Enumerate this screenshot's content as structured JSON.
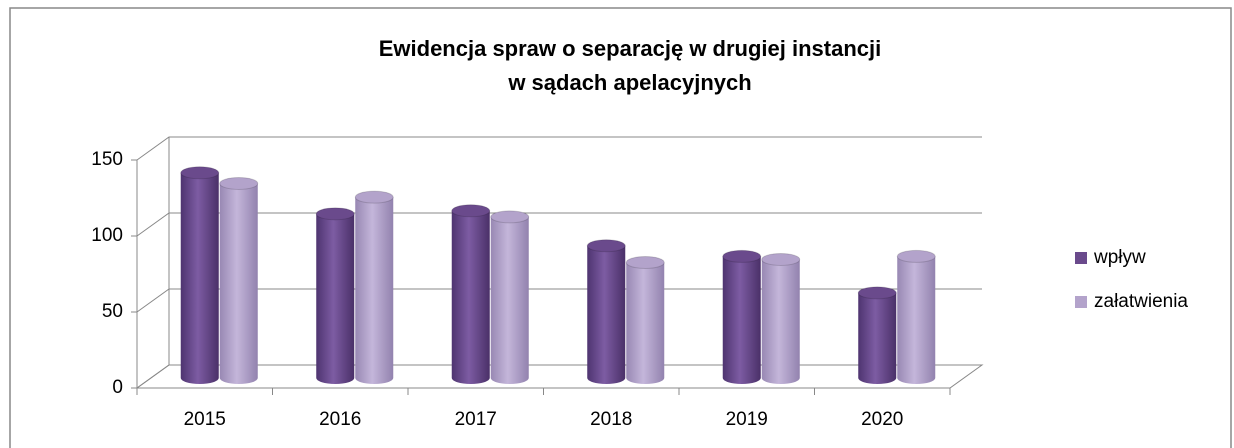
{
  "chart_data": {
    "type": "bar3d",
    "title": [
      "Ewidencja spraw o separację w drugiej instancji",
      "w sądach apelacyjnych"
    ],
    "categories": [
      "2015",
      "2016",
      "2017",
      "2018",
      "2019",
      "2020"
    ],
    "series": [
      {
        "name": "wpływ",
        "color": "#6a4a8c",
        "values": [
          135,
          108,
          110,
          87,
          80,
          56
        ]
      },
      {
        "name": "załatwienia",
        "color": "#b3a3cb",
        "values": [
          128,
          119,
          106,
          76,
          78,
          80
        ]
      }
    ],
    "ylim": [
      0,
      150
    ],
    "yticks": [
      0,
      50,
      100,
      150
    ],
    "grid": true,
    "legend": "right"
  }
}
